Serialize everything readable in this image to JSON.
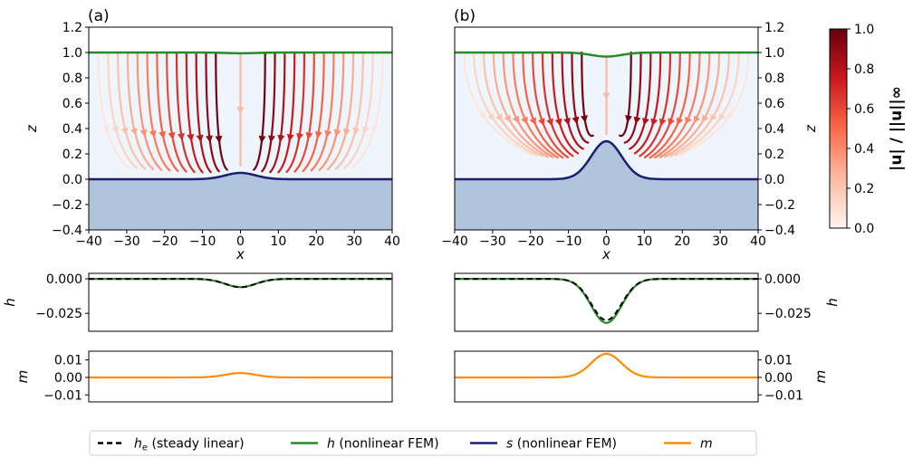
{
  "figure": {
    "panel_labels": [
      "(a)",
      "(b)"
    ],
    "colorbar": {
      "label": "|u| / ||u||∞",
      "ticks": [
        0.0,
        0.2,
        0.4,
        0.6,
        0.8,
        1.0
      ],
      "tick_labels": [
        "0.0",
        "0.2",
        "0.4",
        "0.6",
        "0.8",
        "1.0"
      ],
      "colormap": "Reds"
    },
    "legend": {
      "placement": "bottom-center",
      "entries": [
        {
          "label_main": "h",
          "label_sub": "e",
          "label_rest": " (steady linear)",
          "color": "#000000",
          "dash": true
        },
        {
          "label_main": "h",
          "label_sub": "",
          "label_rest": " (nonlinear FEM)",
          "color": "#2a8a2a",
          "dash": false
        },
        {
          "label_main": "s",
          "label_sub": "",
          "label_rest": " (nonlinear FEM)",
          "color": "#1b1f6e",
          "dash": false
        },
        {
          "label_main": "m",
          "label_sub": "",
          "label_rest": "",
          "color": "#ff8c00",
          "dash": false
        }
      ]
    },
    "colors": {
      "fluid": "#eef5fc",
      "bed": "#b0c4de",
      "h": "#2a8a2a",
      "s": "#1b1f6e",
      "m": "#ff8c00",
      "he": "#000000"
    }
  },
  "chart_data": [
    {
      "type": "line",
      "panel": "(a)",
      "xlabel": "x",
      "ylabel": "z",
      "xlim": [
        -40,
        40
      ],
      "ylim": [
        -0.4,
        1.2
      ],
      "xticks": [
        -40,
        -30,
        -20,
        -10,
        0,
        10,
        20,
        30,
        40
      ],
      "xtick_labels": [
        "−40",
        "−30",
        "−20",
        "−10",
        "0",
        "10",
        "20",
        "30",
        "40"
      ],
      "yticks": [
        -0.4,
        -0.2,
        0.0,
        0.2,
        0.4,
        0.6,
        0.8,
        1.0,
        1.2
      ],
      "ytick_labels": [
        "−0.4",
        "−0.2",
        "0.0",
        "0.2",
        "0.4",
        "0.6",
        "0.8",
        "1.0",
        "1.2"
      ],
      "surface_h": {
        "base": 1.0,
        "dip": 0.006,
        "width": 4
      },
      "bed_s": {
        "base": 0.0,
        "bump": 0.05,
        "width": 4
      },
      "streamlines": true
    },
    {
      "type": "line",
      "panel": "(b)",
      "xlabel": "x",
      "ylabel": "z",
      "xlim": [
        -40,
        40
      ],
      "ylim": [
        -0.4,
        1.2
      ],
      "xticks": [
        -40,
        -30,
        -20,
        -10,
        0,
        10,
        20,
        30,
        40
      ],
      "xtick_labels": [
        "−40",
        "−30",
        "−20",
        "−10",
        "0",
        "10",
        "20",
        "30",
        "40"
      ],
      "yticks": [
        -0.4,
        -0.2,
        0.0,
        0.2,
        0.4,
        0.6,
        0.8,
        1.0,
        1.2
      ],
      "ytick_labels": [
        "−0.4",
        "−0.2",
        "0.0",
        "0.2",
        "0.4",
        "0.6",
        "0.8",
        "1.0",
        "1.2"
      ],
      "surface_h": {
        "base": 1.0,
        "dip": 0.032,
        "width": 4
      },
      "bed_s": {
        "base": 0.0,
        "bump": 0.3,
        "width": 4
      },
      "streamlines": true
    },
    {
      "type": "line",
      "panel": "(a) h",
      "ylabel": "h",
      "xlim": [
        -40,
        40
      ],
      "ylim": [
        -0.038,
        0.004
      ],
      "yticks": [
        0.0,
        -0.025
      ],
      "ytick_labels": [
        "0.000",
        "−0.025"
      ],
      "series": [
        {
          "name": "h (nonlinear FEM)",
          "amplitude": -0.006,
          "width": 4
        },
        {
          "name": "he (steady linear)",
          "amplitude": -0.006,
          "width": 4
        }
      ]
    },
    {
      "type": "line",
      "panel": "(b) h",
      "ylabel": "h",
      "xlim": [
        -40,
        40
      ],
      "ylim": [
        -0.038,
        0.004
      ],
      "yticks": [
        0.0,
        -0.025
      ],
      "ytick_labels": [
        "0.000",
        "−0.025"
      ],
      "series": [
        {
          "name": "h (nonlinear FEM)",
          "amplitude": -0.032,
          "width": 4
        },
        {
          "name": "he (steady linear)",
          "amplitude": -0.03,
          "width": 4
        }
      ]
    },
    {
      "type": "line",
      "panel": "(a) m",
      "ylabel": "m",
      "xlim": [
        -40,
        40
      ],
      "ylim": [
        -0.014,
        0.015
      ],
      "yticks": [
        0.01,
        0.0,
        -0.01
      ],
      "ytick_labels": [
        "0.01",
        "0.00",
        "−0.01"
      ],
      "series": [
        {
          "name": "m",
          "amplitude": 0.0025,
          "width": 4
        }
      ]
    },
    {
      "type": "line",
      "panel": "(b) m",
      "ylabel": "m",
      "xlim": [
        -40,
        40
      ],
      "ylim": [
        -0.014,
        0.015
      ],
      "yticks": [
        0.01,
        0.0,
        -0.01
      ],
      "ytick_labels": [
        "0.01",
        "0.00",
        "−0.01"
      ],
      "series": [
        {
          "name": "m",
          "amplitude": 0.0135,
          "width": 4
        }
      ]
    }
  ]
}
